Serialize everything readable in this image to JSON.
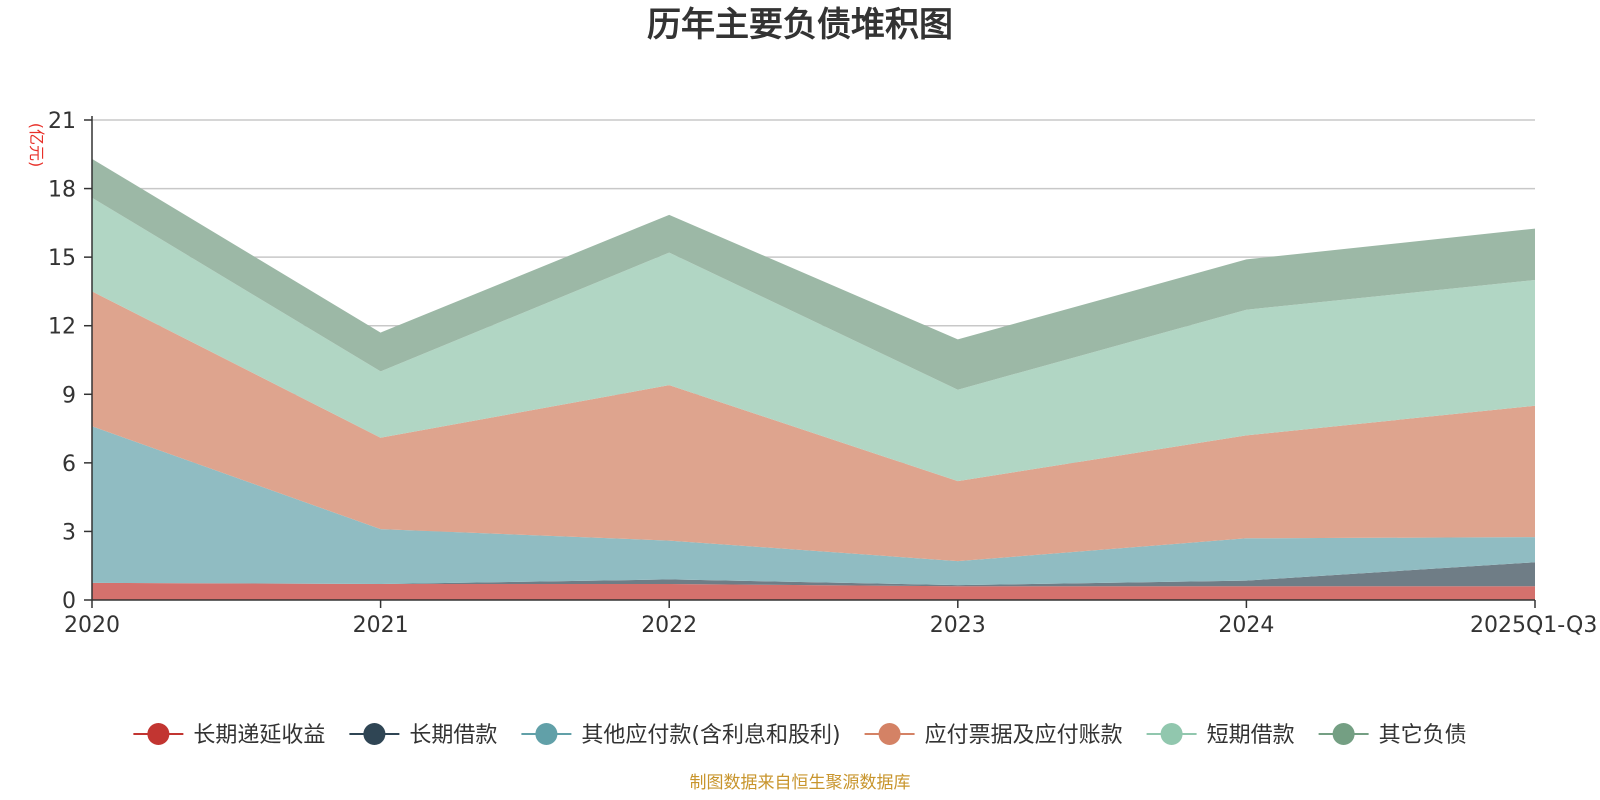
{
  "chart_data": {
    "type": "area",
    "stacked": true,
    "title": "历年主要负债堆积图",
    "unit_label": "(亿元)",
    "categories": [
      "2020",
      "2021",
      "2022",
      "2023",
      "2024",
      "2025Q1-Q3"
    ],
    "ylim": [
      0,
      21
    ],
    "yticks": [
      "0",
      "3",
      "6",
      "9",
      "12",
      "15",
      "18",
      "21"
    ],
    "grid": true,
    "legend_position": "bottom",
    "series": [
      {
        "name": "长期递延收益",
        "values": [
          0.75,
          0.7,
          0.7,
          0.6,
          0.6,
          0.6
        ],
        "color": "#c23531",
        "fill": "#d4716d"
      },
      {
        "name": "长期借款",
        "values": [
          0.0,
          0.0,
          0.2,
          0.05,
          0.25,
          1.05
        ],
        "color": "#2f4554",
        "fill": "#6f7d86"
      },
      {
        "name": "其他应付款(含利息和股利)",
        "values": [
          6.85,
          2.4,
          1.7,
          1.05,
          1.85,
          1.1
        ],
        "color": "#61a0a8",
        "fill": "#90bcc2"
      },
      {
        "name": "应付票据及应付账款",
        "values": [
          5.9,
          4.0,
          6.8,
          3.5,
          4.5,
          5.75
        ],
        "color": "#d48265",
        "fill": "#dea48e"
      },
      {
        "name": "短期借款",
        "values": [
          4.1,
          2.9,
          5.8,
          4.0,
          5.5,
          5.5
        ],
        "color": "#91c7ae",
        "fill": "#b1d6c4"
      },
      {
        "name": "其它负债",
        "values": [
          1.7,
          1.7,
          1.65,
          2.2,
          2.2,
          2.25
        ],
        "color": "#749f83",
        "fill": "#9cb8a6"
      }
    ],
    "source": "制图数据来自恒生聚源数据库"
  }
}
